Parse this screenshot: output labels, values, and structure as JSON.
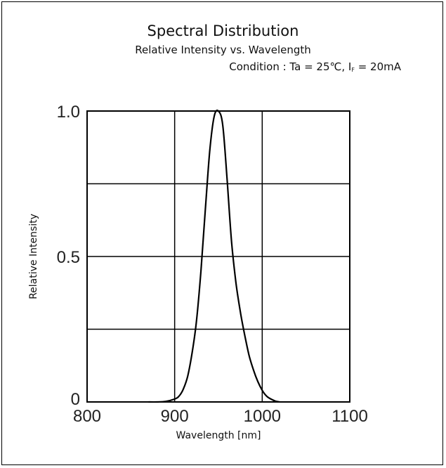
{
  "chart_data": {
    "type": "line",
    "title": "Spectral Distribution",
    "subtitle": "Relative Intensity vs. Wavelength",
    "condition": {
      "prefix": "Condition : Ta = 25℃, I",
      "subscript": "F",
      "suffix": " = 20mA"
    },
    "xlabel": "Wavelength [nm]",
    "ylabel": "Relative Intensity",
    "xlim": [
      800,
      1100
    ],
    "ylim": [
      0,
      1.0
    ],
    "xticks": [
      800,
      900,
      1000,
      1100
    ],
    "xtick_labels": [
      "800",
      "900",
      "1000",
      "1100"
    ],
    "yticks": [
      0,
      0.5,
      1.0
    ],
    "ytick_labels": [
      "0",
      "0.5",
      "1.0"
    ],
    "grid": true,
    "series": [
      {
        "x": [
          870,
          880,
          890,
          900,
          905,
          910,
          915,
          920,
          925,
          930,
          935,
          940,
          945,
          950,
          955,
          960,
          965,
          970,
          975,
          980,
          985,
          990,
          995,
          1000,
          1005,
          1010,
          1015,
          1020
        ],
        "y": [
          0.0,
          0.0,
          0.002,
          0.01,
          0.02,
          0.045,
          0.09,
          0.17,
          0.28,
          0.45,
          0.66,
          0.86,
          0.98,
          1.0,
          0.95,
          0.76,
          0.55,
          0.41,
          0.31,
          0.23,
          0.16,
          0.11,
          0.07,
          0.04,
          0.02,
          0.01,
          0.003,
          0.0
        ],
        "color": "#000000"
      }
    ]
  }
}
